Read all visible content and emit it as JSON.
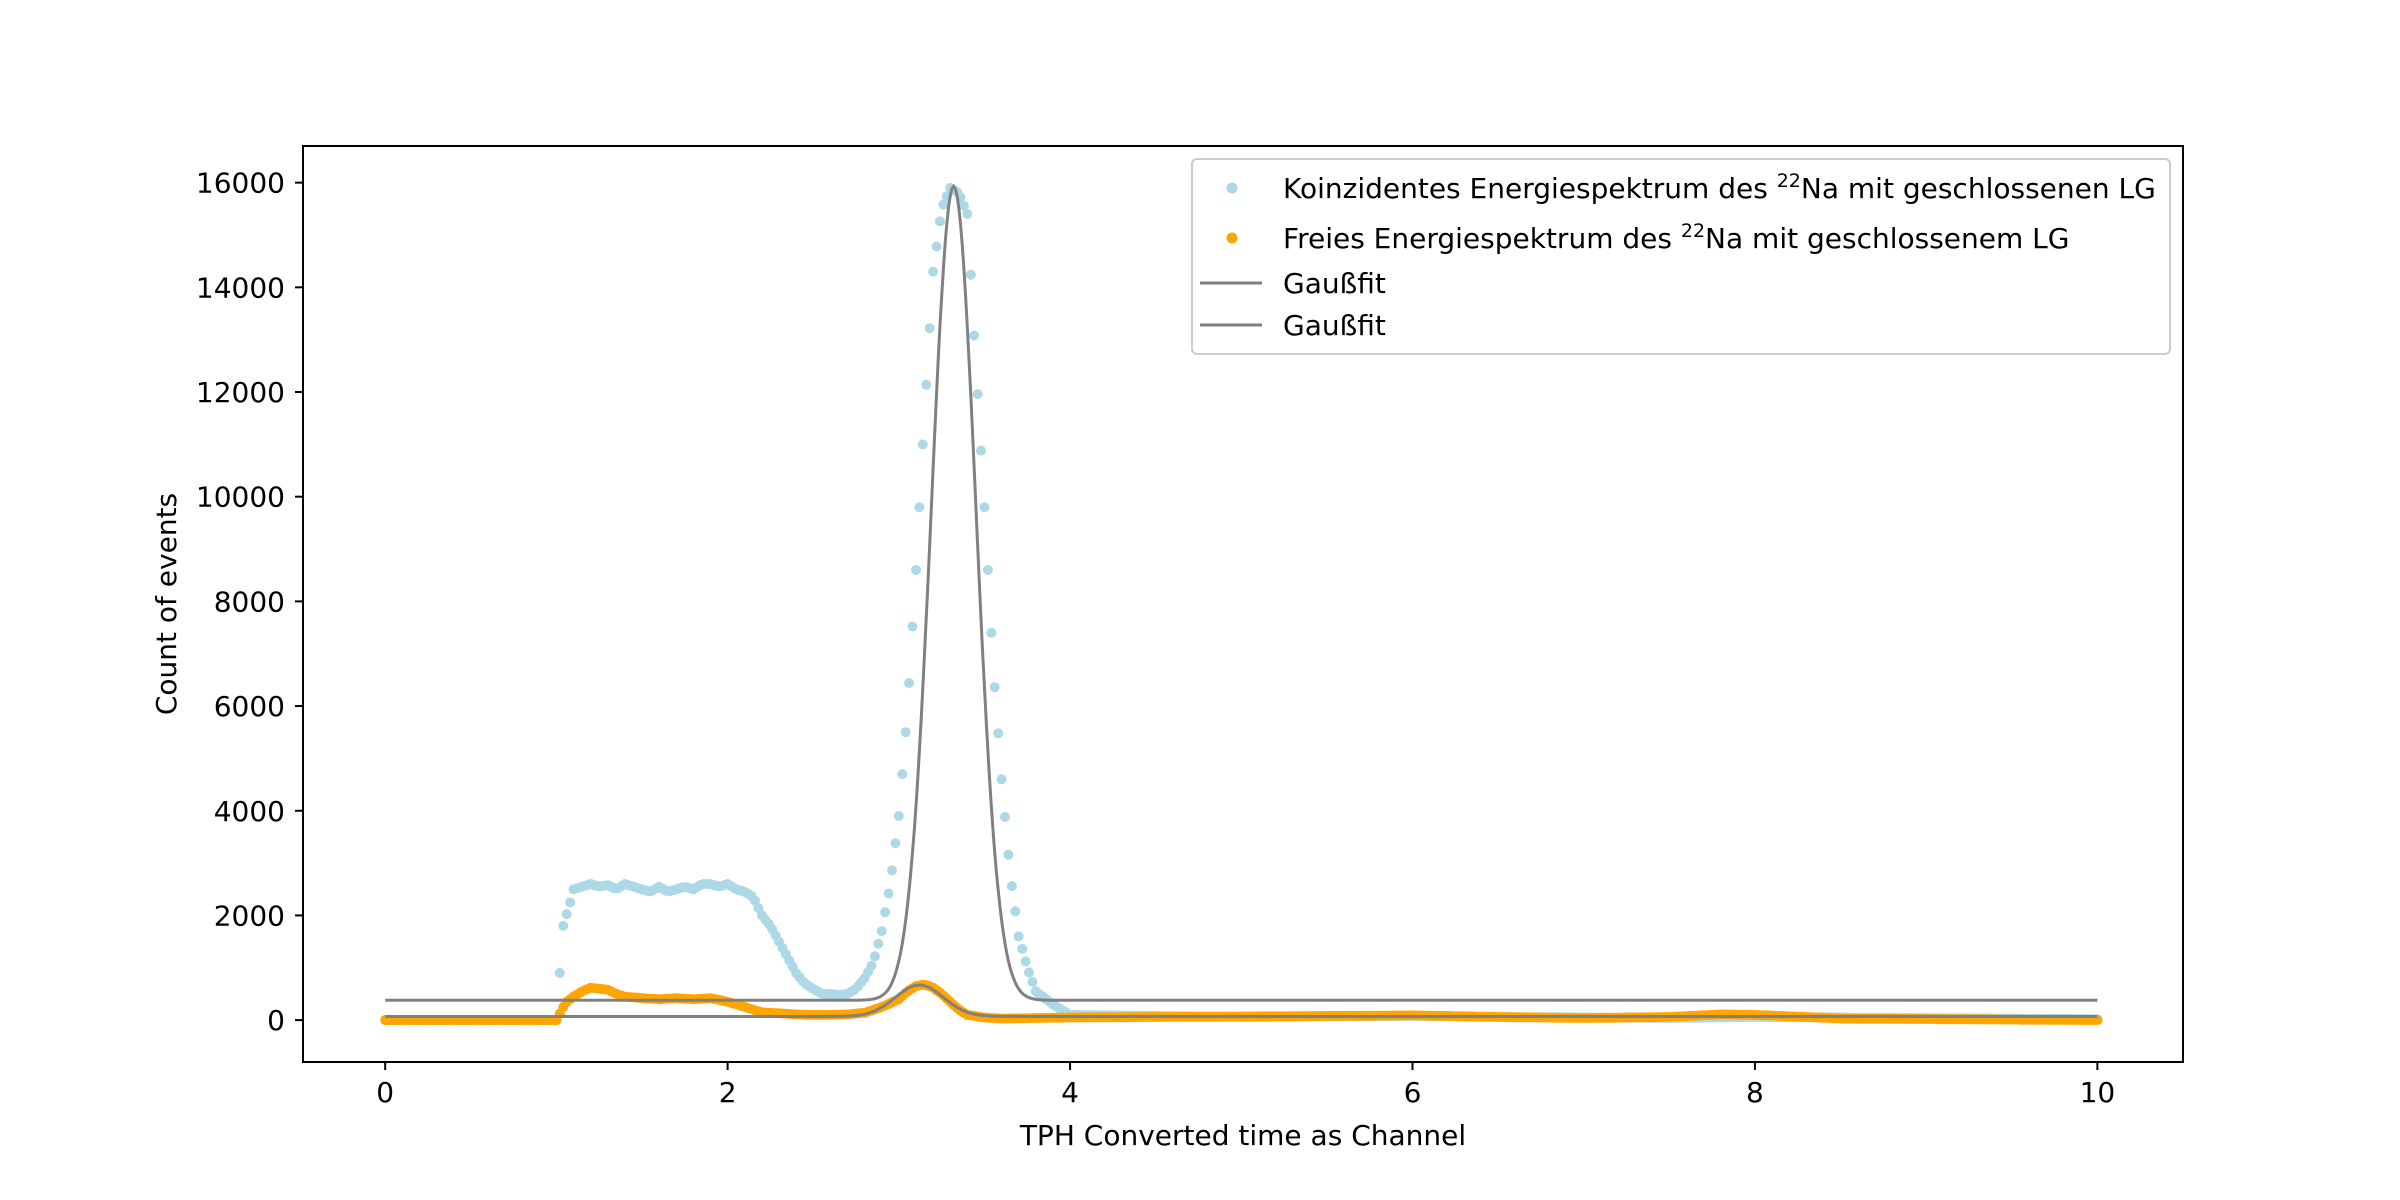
{
  "chart_data": {
    "type": "scatter",
    "title": "",
    "xlabel": "TPH Converted time as Channel",
    "ylabel": "Count of events",
    "xlim": [
      -0.48,
      10.5
    ],
    "ylim": [
      -800,
      16700
    ],
    "xticks": [
      0,
      2,
      4,
      6,
      8,
      10
    ],
    "yticks": [
      0,
      2000,
      4000,
      6000,
      8000,
      10000,
      12000,
      14000,
      16000
    ],
    "grid": false,
    "legend_position": "top-right",
    "series": [
      {
        "name_prefix": "Koinzidentes Energiespektrum des ",
        "name_sup": "22",
        "name_suffix": "Na mit geschlossenen LG",
        "kind": "scatter",
        "color": "#add8e6",
        "x": [
          0,
          0.1,
          0.2,
          0.3,
          0.4,
          0.5,
          0.6,
          0.7,
          0.8,
          0.9,
          1.0,
          1.04,
          1.08,
          1.1,
          1.15,
          1.2,
          1.25,
          1.3,
          1.35,
          1.4,
          1.45,
          1.5,
          1.55,
          1.6,
          1.65,
          1.7,
          1.75,
          1.8,
          1.85,
          1.9,
          1.95,
          2.0,
          2.05,
          2.1,
          2.15,
          2.2,
          2.25,
          2.3,
          2.35,
          2.4,
          2.45,
          2.5,
          2.55,
          2.6,
          2.65,
          2.7,
          2.75,
          2.8,
          2.85,
          2.9,
          2.95,
          3.0,
          3.05,
          3.1,
          3.15,
          3.2,
          3.25,
          3.3,
          3.35,
          3.4,
          3.45,
          3.5,
          3.55,
          3.6,
          3.65,
          3.7,
          3.75,
          3.8,
          3.9,
          4.0,
          4.5,
          5.0,
          5.5,
          6.0,
          6.5,
          7.0,
          7.5,
          8.0,
          8.5,
          9.0,
          9.5,
          10.0
        ],
        "y": [
          0,
          0,
          0,
          0,
          0,
          0,
          0,
          0,
          0,
          0,
          0,
          1800,
          2250,
          2500,
          2550,
          2600,
          2550,
          2580,
          2500,
          2600,
          2550,
          2500,
          2450,
          2550,
          2450,
          2500,
          2550,
          2500,
          2600,
          2600,
          2550,
          2600,
          2500,
          2450,
          2350,
          2000,
          1800,
          1500,
          1200,
          900,
          700,
          600,
          500,
          500,
          480,
          500,
          600,
          800,
          1100,
          1700,
          2600,
          3900,
          5900,
          8600,
          11600,
          14300,
          15500,
          15900,
          15800,
          15400,
          12500,
          9800,
          6800,
          4600,
          2800,
          1600,
          1000,
          550,
          300,
          100,
          80,
          60,
          70,
          80,
          60,
          50,
          40,
          60,
          50,
          40,
          30,
          20
        ]
      },
      {
        "name_prefix": "Freies Energiespektrum des ",
        "name_sup": "22",
        "name_suffix": "Na mit geschlossenem LG",
        "kind": "scatter",
        "color": "#ffa500",
        "x": [
          0,
          0.1,
          0.2,
          0.3,
          0.4,
          0.5,
          0.6,
          0.7,
          0.8,
          0.9,
          1.0,
          1.04,
          1.06,
          1.1,
          1.15,
          1.2,
          1.25,
          1.3,
          1.35,
          1.4,
          1.5,
          1.6,
          1.7,
          1.8,
          1.9,
          2.0,
          2.1,
          2.2,
          2.3,
          2.4,
          2.5,
          2.6,
          2.7,
          2.8,
          2.9,
          3.0,
          3.05,
          3.1,
          3.15,
          3.2,
          3.25,
          3.3,
          3.35,
          3.4,
          3.5,
          3.6,
          3.8,
          4.0,
          4.5,
          5.0,
          5.5,
          6.0,
          6.2,
          6.5,
          7.0,
          7.5,
          7.8,
          8.0,
          8.3,
          8.5,
          9.0,
          9.5,
          10.0
        ],
        "y": [
          0,
          0,
          0,
          0,
          0,
          0,
          0,
          0,
          0,
          0,
          0,
          250,
          350,
          450,
          550,
          620,
          600,
          580,
          500,
          450,
          420,
          400,
          420,
          400,
          420,
          350,
          250,
          150,
          130,
          110,
          100,
          100,
          110,
          140,
          250,
          400,
          550,
          650,
          680,
          620,
          500,
          350,
          200,
          100,
          50,
          30,
          40,
          50,
          60,
          70,
          80,
          90,
          80,
          60,
          40,
          60,
          110,
          100,
          60,
          30,
          20,
          10,
          0
        ]
      },
      {
        "name": "Gaußfit",
        "kind": "line",
        "color": "#808080",
        "fit": {
          "amplitude": 15550,
          "center": 3.32,
          "sigma": 0.13,
          "offset": 380
        },
        "x_range": [
          0,
          10
        ]
      },
      {
        "name": "Gaußfit",
        "kind": "line",
        "color": "#808080",
        "fit": {
          "amplitude": 600,
          "center": 3.12,
          "sigma": 0.14,
          "offset": 70
        },
        "x_range": [
          0,
          10
        ]
      }
    ]
  }
}
